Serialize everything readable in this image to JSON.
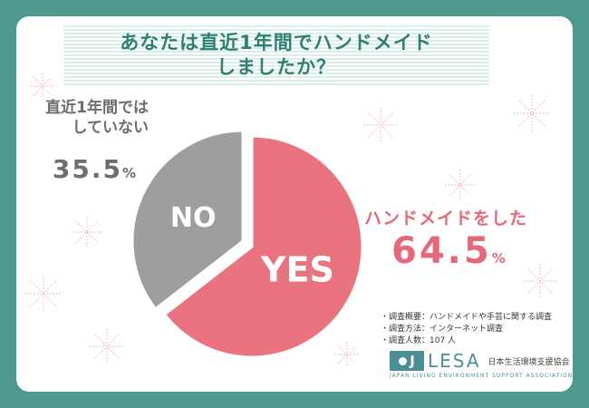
{
  "title": {
    "line1": "あなたは直近1年間でハンドメイド",
    "line2": "しましたか？"
  },
  "chart_data": {
    "type": "pie",
    "slices": [
      {
        "name": "YES",
        "label": "ハンドメイドをした",
        "value": 64.5,
        "value_text": "64.5",
        "unit": "%",
        "color": "#e9737f"
      },
      {
        "name": "NO",
        "label": "直近1年間ではしていない",
        "label_line1": "直近1年間では",
        "label_line2": "していない",
        "value": 35.5,
        "value_text": "35.5",
        "unit": "%",
        "color": "#9e9e9f"
      }
    ]
  },
  "notes": [
    "・調査概要：ハンドメイドや手芸に関する調査",
    "・調査方法：インターネット調査",
    "・調査人数：107 人"
  ],
  "logo": {
    "mark": "J",
    "name": "LESA",
    "jp_name": "日本生活環境支援協会",
    "en_name": "JAPAN LIVING ENVIRONMENT SUPPORT ASSOCIATION"
  },
  "colors": {
    "background": "#4e9a8f",
    "title": "#2f7e72",
    "yes": "#e9737f",
    "no": "#9e9e9f",
    "sparkle": "#f4b7c1"
  }
}
